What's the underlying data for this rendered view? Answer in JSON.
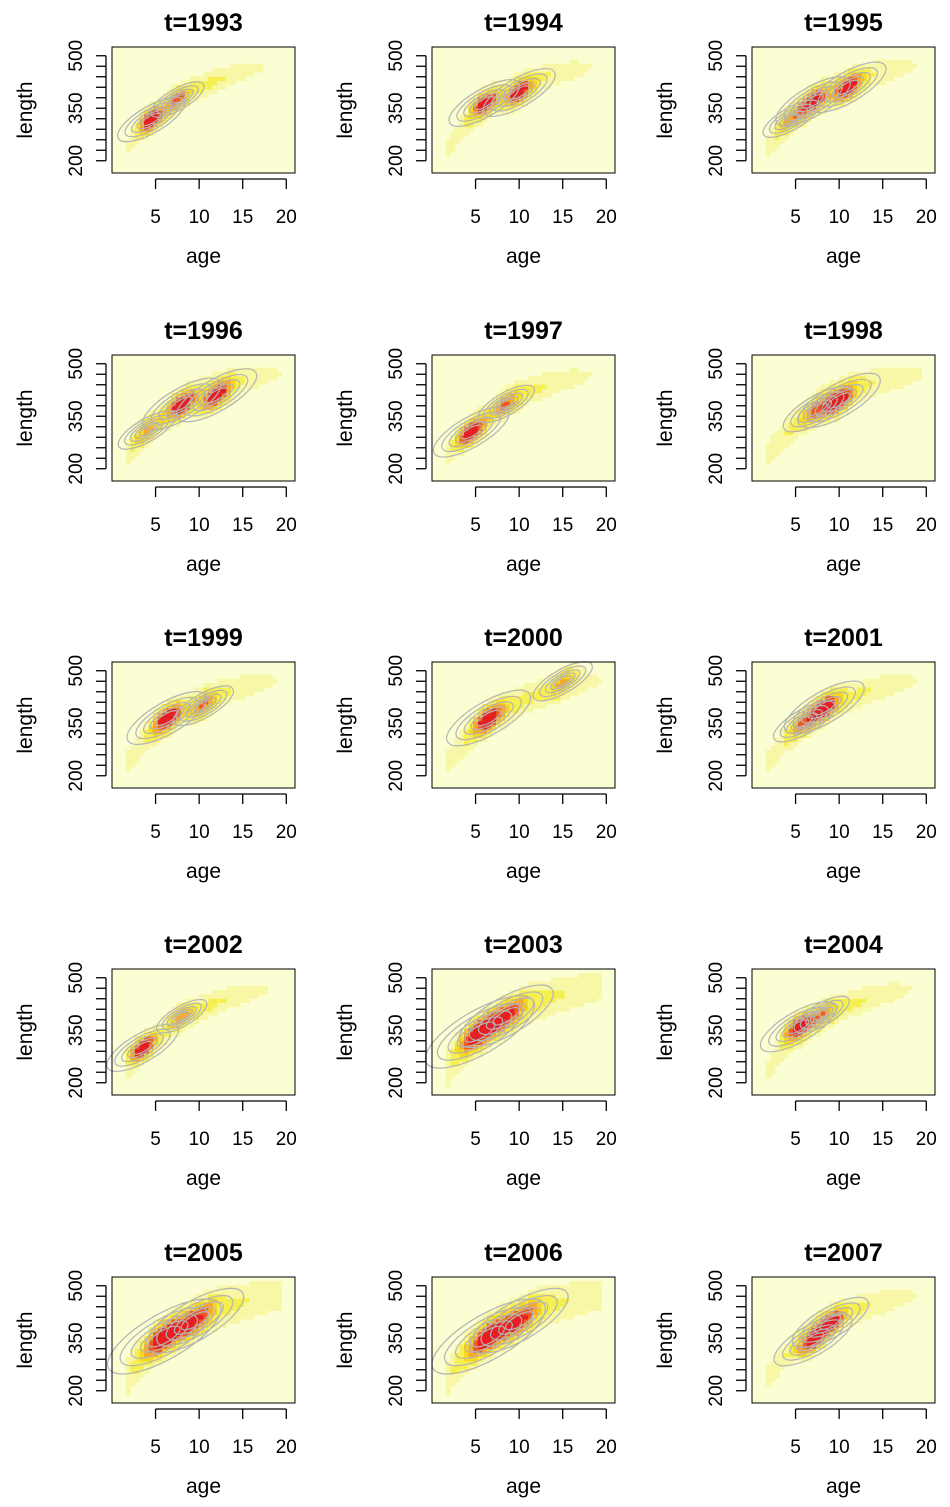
{
  "chart_data": {
    "type": "heatmap",
    "layout": "5 rows x 3 columns of small-multiple panels",
    "overlay": "grey density contour lines over a yellow-to-red heat map",
    "colors": {
      "background": "#fbfdd3",
      "levels": [
        "#fbfdd3",
        "#f8f7a6",
        "#f6ef50",
        "#f7d81e",
        "#f7a92a",
        "#f05b24",
        "#e71e22"
      ],
      "contour": "#b4b4b4"
    },
    "xlabel": "age",
    "ylabel": "length",
    "xlim": [
      0,
      21
    ],
    "ylim": [
      165,
      525
    ],
    "xticks": [
      5,
      10,
      15,
      20
    ],
    "yticks": [
      200,
      230,
      260,
      290,
      320,
      350,
      380,
      410,
      440,
      470,
      500
    ],
    "ytick_labels": {
      "200": "200",
      "350": "350",
      "500": "500"
    },
    "panels": [
      {
        "title": "t=1993",
        "modes": [
          {
            "age": 4.5,
            "length": 318,
            "peak": 1.0
          },
          {
            "age": 7.5,
            "length": 375,
            "peak": 0.55
          }
        ],
        "spread": 0.8
      },
      {
        "title": "t=1994",
        "modes": [
          {
            "age": 6.0,
            "length": 365,
            "peak": 0.85
          },
          {
            "age": 10.0,
            "length": 395,
            "peak": 0.9
          }
        ],
        "spread": 0.9
      },
      {
        "title": "t=1995",
        "modes": [
          {
            "age": 7.0,
            "length": 370,
            "peak": 0.85
          },
          {
            "age": 11.0,
            "length": 410,
            "peak": 0.9
          },
          {
            "age": 4.5,
            "length": 320,
            "peak": 0.35
          }
        ],
        "spread": 0.95
      },
      {
        "title": "t=1996",
        "modes": [
          {
            "age": 8.0,
            "length": 385,
            "peak": 0.85
          },
          {
            "age": 12.0,
            "length": 410,
            "peak": 0.9
          },
          {
            "age": 4.0,
            "length": 310,
            "peak": 0.3
          }
        ],
        "spread": 1.0
      },
      {
        "title": "t=1997",
        "modes": [
          {
            "age": 4.5,
            "length": 305,
            "peak": 1.0
          },
          {
            "age": 8.5,
            "length": 385,
            "peak": 0.45
          }
        ],
        "spread": 0.9
      },
      {
        "title": "t=1998",
        "modes": [
          {
            "age": 10.0,
            "length": 395,
            "peak": 0.85
          },
          {
            "age": 7.5,
            "length": 370,
            "peak": 0.5
          }
        ],
        "spread": 1.05
      },
      {
        "title": "t=1999",
        "modes": [
          {
            "age": 6.3,
            "length": 365,
            "peak": 1.0
          },
          {
            "age": 10.5,
            "length": 400,
            "peak": 0.45
          }
        ],
        "spread": 0.95
      },
      {
        "title": "t=2000",
        "modes": [
          {
            "age": 6.5,
            "length": 365,
            "peak": 1.0
          },
          {
            "age": 15.0,
            "length": 470,
            "peak": 0.35
          }
        ],
        "spread": 1.0
      },
      {
        "title": "t=2001",
        "modes": [
          {
            "age": 8.3,
            "length": 395,
            "peak": 1.0
          },
          {
            "age": 6.0,
            "length": 355,
            "peak": 0.5
          }
        ],
        "spread": 0.95
      },
      {
        "title": "t=2002",
        "modes": [
          {
            "age": 3.5,
            "length": 300,
            "peak": 1.0
          },
          {
            "age": 8.0,
            "length": 390,
            "peak": 0.35
          }
        ],
        "spread": 0.85
      },
      {
        "title": "t=2003",
        "modes": [
          {
            "age": 5.5,
            "length": 345,
            "peak": 1.0
          },
          {
            "age": 8.5,
            "length": 390,
            "peak": 0.7
          }
        ],
        "spread": 1.3
      },
      {
        "title": "t=2004",
        "modes": [
          {
            "age": 5.3,
            "length": 360,
            "peak": 1.0
          },
          {
            "age": 8.0,
            "length": 395,
            "peak": 0.4
          }
        ],
        "spread": 0.9
      },
      {
        "title": "t=2005",
        "modes": [
          {
            "age": 6.0,
            "length": 355,
            "peak": 1.0
          },
          {
            "age": 9.5,
            "length": 400,
            "peak": 0.7
          }
        ],
        "spread": 1.35
      },
      {
        "title": "t=2006",
        "modes": [
          {
            "age": 6.5,
            "length": 355,
            "peak": 1.0
          },
          {
            "age": 10.0,
            "length": 400,
            "peak": 0.7
          }
        ],
        "spread": 1.35
      },
      {
        "title": "t=2007",
        "modes": [
          {
            "age": 7.0,
            "length": 345,
            "peak": 0.95
          },
          {
            "age": 9.0,
            "length": 395,
            "peak": 0.9
          }
        ],
        "spread": 0.95
      }
    ]
  }
}
